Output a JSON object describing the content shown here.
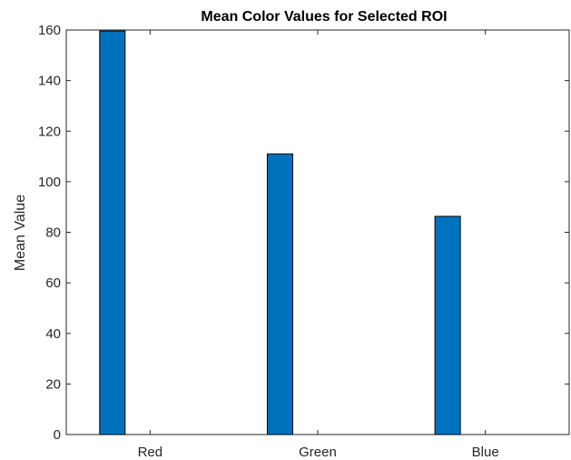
{
  "chart_data": {
    "type": "bar",
    "title": "Mean Color Values for Selected ROI",
    "xlabel": "",
    "ylabel": "Mean Value",
    "categories": [
      "Red",
      "Green",
      "Blue"
    ],
    "values": [
      159.6,
      111.0,
      86.3
    ],
    "ylim": [
      0,
      160
    ],
    "yticks": [
      0,
      20,
      40,
      60,
      80,
      100,
      120,
      140,
      160
    ],
    "grid": false,
    "legend": "none",
    "colors": {
      "bar_fill": "#0072BD",
      "bar_edge": "#000000",
      "axis": "#262626",
      "background": "#ffffff"
    }
  }
}
